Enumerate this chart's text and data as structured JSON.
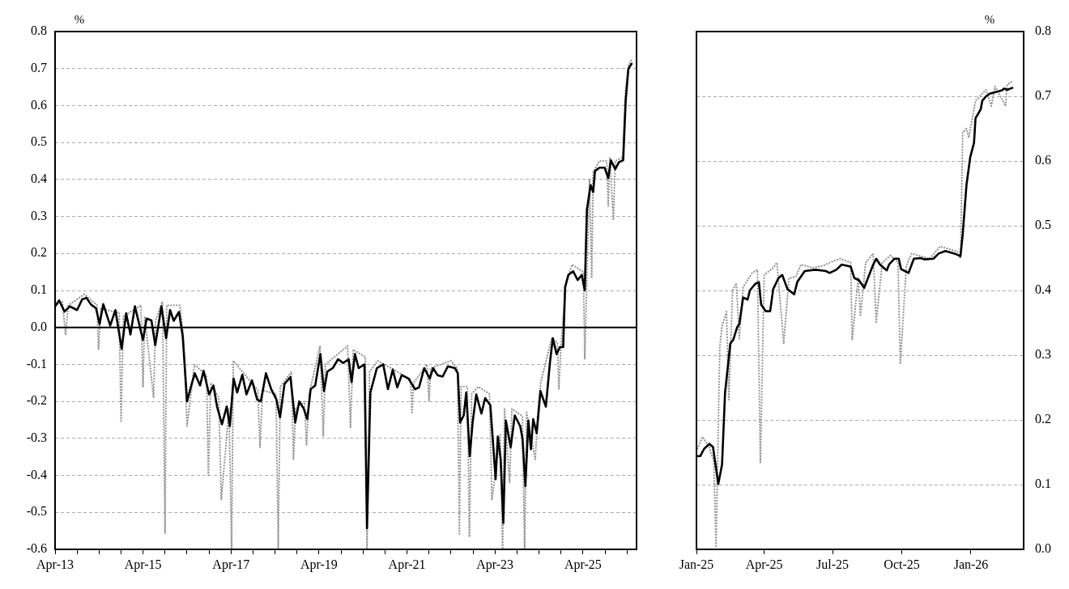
{
  "chart_data": [
    {
      "type": "line",
      "ylabel": "%",
      "grid": "y",
      "marker": "none",
      "xlim": [
        "2013-04-01",
        "2026-06-20"
      ],
      "ylim": [
        -0.6,
        0.8
      ],
      "yticks": [
        -0.6,
        -0.5,
        -0.4,
        -0.3,
        -0.2,
        -0.1,
        {
          "value": 0,
          "label": "0.0"
        },
        0.1,
        0.2,
        0.3,
        0.4,
        0.5,
        0.6,
        0.7,
        0.8
      ],
      "xticks": [
        {
          "value": "2013-04-01",
          "label": "Apr-13"
        },
        {
          "value": "2013-10-01",
          "label": null
        },
        {
          "value": "2014-04-01",
          "label": null
        },
        {
          "value": "2014-10-01",
          "label": null
        },
        {
          "value": "2015-04-01",
          "label": "Apr-15"
        },
        {
          "value": "2015-10-01",
          "label": null
        },
        {
          "value": "2016-04-01",
          "label": null
        },
        {
          "value": "2016-10-01",
          "label": null
        },
        {
          "value": "2017-04-01",
          "label": "Apr-17"
        },
        {
          "value": "2017-10-01",
          "label": null
        },
        {
          "value": "2018-04-01",
          "label": null
        },
        {
          "value": "2018-10-01",
          "label": null
        },
        {
          "value": "2019-04-01",
          "label": "Apr-19"
        },
        {
          "value": "2019-10-01",
          "label": null
        },
        {
          "value": "2020-04-01",
          "label": null
        },
        {
          "value": "2020-10-01",
          "label": null
        },
        {
          "value": "2021-04-01",
          "label": "Apr-21"
        },
        {
          "value": "2021-10-01",
          "label": null
        },
        {
          "value": "2022-04-01",
          "label": null
        },
        {
          "value": "2022-10-01",
          "label": null
        },
        {
          "value": "2023-04-01",
          "label": "Apr-23"
        },
        {
          "value": "2023-10-01",
          "label": null
        },
        {
          "value": "2024-04-01",
          "label": null
        },
        {
          "value": "2024-10-01",
          "label": null
        },
        {
          "value": "2025-04-01",
          "label": "Apr-25"
        },
        {
          "value": "2025-10-01",
          "label": null
        },
        {
          "value": "2026-04-01",
          "label": null
        }
      ],
      "ref_lines": [
        {
          "axis": "y",
          "value": 0,
          "color": "#000000",
          "line_style": "solid"
        }
      ],
      "series": [
        {
          "color": "#000000",
          "line_style": "solid",
          "x": [
            "2013-04-01",
            "2013-05-05",
            "2013-06-18",
            "2013-08-01",
            "2013-10-01",
            "2013-11-12",
            "2013-12-18",
            "2014-01-24",
            "2014-03-07",
            "2014-04-06",
            "2014-05-06",
            "2014-07-03",
            "2014-08-15",
            "2014-10-06",
            "2014-11-12",
            "2014-12-18",
            "2015-01-24",
            "2015-04-01",
            "2015-05-01",
            "2015-06-10",
            "2015-07-12",
            "2015-09-01",
            "2015-10-10",
            "2015-11-12",
            "2015-12-12",
            "2016-01-25",
            "2016-02-25",
            "2016-04-01",
            "2016-05-06",
            "2016-06-04",
            "2016-07-18",
            "2016-08-16",
            "2016-10-01",
            "2016-11-06",
            "2016-12-06",
            "2017-01-16",
            "2017-02-24",
            "2017-03-22",
            "2017-04-22",
            "2017-05-22",
            "2017-07-04",
            "2017-08-07",
            "2017-09-22",
            "2017-11-04",
            "2017-12-04",
            "2018-01-16",
            "2018-03-01",
            "2018-04-13",
            "2018-05-13",
            "2018-06-19",
            "2018-08-07",
            "2018-09-16",
            "2018-10-19",
            "2018-11-25",
            "2018-12-25",
            "2019-01-22",
            "2019-03-01",
            "2019-04-13",
            "2019-05-13",
            "2019-06-10",
            "2019-07-25",
            "2019-09-07",
            "2019-10-19",
            "2019-12-04",
            "2019-12-28",
            "2020-01-25",
            "2020-02-25",
            "2020-04-13",
            "2020-05-04",
            "2020-06-01",
            "2020-07-25",
            "2020-09-16",
            "2020-10-25",
            "2020-12-04",
            "2021-01-10",
            "2021-02-16",
            "2021-04-13",
            "2021-06-07",
            "2021-07-10",
            "2021-08-22",
            "2021-10-07",
            "2021-11-04",
            "2021-12-10",
            "2022-01-22",
            "2022-03-07",
            "2022-05-04",
            "2022-05-28",
            "2022-06-16",
            "2022-07-16",
            "2022-08-06",
            "2022-09-04",
            "2022-09-28",
            "2022-10-28",
            "2022-12-10",
            "2023-01-10",
            "2023-02-22",
            "2023-04-07",
            "2023-04-25",
            "2023-05-19",
            "2023-06-10",
            "2023-07-01",
            "2023-08-10",
            "2023-09-13",
            "2023-10-28",
            "2023-11-16",
            "2023-12-10",
            "2024-01-04",
            "2024-01-25",
            "2024-02-13",
            "2024-03-13",
            "2024-04-13",
            "2024-05-28",
            "2024-07-01",
            "2024-07-25",
            "2024-08-25",
            "2024-09-22",
            "2024-10-19",
            "2024-11-04",
            "2024-12-01",
            "2025-01-10",
            "2025-02-16",
            "2025-03-22",
            "2025-04-16",
            "2025-05-04",
            "2025-06-04",
            "2025-06-25",
            "2025-07-10",
            "2025-08-16",
            "2025-09-28",
            "2025-10-28",
            "2025-11-19",
            "2025-12-25",
            "2026-01-25",
            "2026-03-01",
            "2026-03-22",
            "2026-04-13",
            "2026-05-10"
          ],
          "values": [
            0.057,
            0.073,
            0.043,
            0.057,
            0.047,
            0.076,
            0.08,
            0.062,
            0.052,
            0.009,
            0.063,
            0.005,
            0.047,
            -0.058,
            0.038,
            -0.019,
            0.057,
            -0.034,
            0.024,
            0.019,
            -0.048,
            0.057,
            -0.029,
            0.047,
            0.018,
            0.042,
            -0.024,
            -0.2,
            -0.157,
            -0.124,
            -0.157,
            -0.117,
            -0.181,
            -0.157,
            -0.214,
            -0.262,
            -0.214,
            -0.267,
            -0.138,
            -0.176,
            -0.128,
            -0.181,
            -0.143,
            -0.195,
            -0.2,
            -0.124,
            -0.167,
            -0.195,
            -0.243,
            -0.153,
            -0.134,
            -0.257,
            -0.2,
            -0.219,
            -0.248,
            -0.167,
            -0.157,
            -0.072,
            -0.172,
            -0.119,
            -0.11,
            -0.086,
            -0.096,
            -0.086,
            -0.148,
            -0.072,
            -0.11,
            -0.1,
            -0.543,
            -0.176,
            -0.11,
            -0.1,
            -0.167,
            -0.114,
            -0.162,
            -0.129,
            -0.138,
            -0.167,
            -0.162,
            -0.11,
            -0.138,
            -0.11,
            -0.129,
            -0.133,
            -0.105,
            -0.11,
            -0.124,
            -0.257,
            -0.238,
            -0.176,
            -0.348,
            -0.257,
            -0.181,
            -0.233,
            -0.191,
            -0.21,
            -0.41,
            -0.295,
            -0.357,
            -0.529,
            -0.252,
            -0.324,
            -0.238,
            -0.267,
            -0.3,
            -0.429,
            -0.252,
            -0.329,
            -0.248,
            -0.286,
            -0.172,
            -0.214,
            -0.095,
            -0.029,
            -0.072,
            -0.053,
            -0.053,
            0.109,
            0.142,
            0.152,
            0.128,
            0.142,
            0.1,
            0.319,
            0.385,
            0.366,
            0.423,
            0.432,
            0.432,
            0.404,
            0.452,
            0.428,
            0.447,
            0.452,
            0.614,
            0.699,
            0.713
          ]
        },
        {
          "color": "#999999",
          "line_style": "dotted",
          "x": [
            "2013-04-01",
            "2013-06-01",
            "2013-06-27",
            "2013-07-20",
            "2013-12-01",
            "2014-03-15",
            "2014-03-28",
            "2014-04-15",
            "2014-09-15",
            "2014-10-01",
            "2014-10-20",
            "2015-03-15",
            "2015-04-01",
            "2015-04-15",
            "2015-06-28",
            "2015-07-15",
            "2015-09-10",
            "2015-10-01",
            "2015-10-15",
            "2016-02-01",
            "2016-03-01",
            "2016-04-01",
            "2016-06-01",
            "2016-09-10",
            "2016-09-25",
            "2016-10-15",
            "2016-12-20",
            "2017-01-10",
            "2017-03-15",
            "2017-04-06",
            "2017-04-20",
            "2017-11-10",
            "2017-11-27",
            "2017-12-20",
            "2018-04-10",
            "2018-04-28",
            "2018-05-15",
            "2018-08-15",
            "2018-09-01",
            "2018-09-20",
            "2018-12-01",
            "2018-12-19",
            "2019-01-10",
            "2019-04-10",
            "2019-05-07",
            "2019-05-25",
            "2019-11-25",
            "2019-12-19",
            "2020-01-10",
            "2020-04-20",
            "2020-05-04",
            "2020-05-25",
            "2020-08-01",
            "2021-05-01",
            "2021-05-13",
            "2021-05-25",
            "2021-09-15",
            "2021-10-01",
            "2021-10-15",
            "2022-04-01",
            "2022-05-25",
            "2022-06-10",
            "2022-06-25",
            "2022-08-15",
            "2022-09-01",
            "2022-09-20",
            "2022-11-15",
            "2023-02-15",
            "2023-03-07",
            "2023-05-15",
            "2023-06-04",
            "2023-06-20",
            "2023-08-01",
            "2023-08-20",
            "2023-11-15",
            "2023-12-04",
            "2023-12-20",
            "2024-03-01",
            "2024-03-20",
            "2024-04-15",
            "2024-07-15",
            "2024-09-01",
            "2024-09-13",
            "2024-10-01",
            "2024-11-10",
            "2025-01-01",
            "2025-04-05",
            "2025-04-16",
            "2025-05-25",
            "2025-06-13",
            "2025-06-25",
            "2025-08-15",
            "2025-10-15",
            "2025-10-28",
            "2025-11-10",
            "2025-12-10",
            "2025-12-25",
            "2026-02-25",
            "2026-03-20",
            "2026-04-15",
            "2026-05-12"
          ],
          "values": [
            0.06,
            0.07,
            -0.02,
            0.06,
            0.09,
            0.06,
            -0.06,
            0.05,
            0.04,
            -0.253,
            0.03,
            0.06,
            -0.162,
            0.03,
            -0.19,
            0.02,
            0.07,
            -0.558,
            0.06,
            0.06,
            -0.02,
            -0.267,
            -0.1,
            -0.13,
            -0.4,
            -0.15,
            -0.19,
            -0.467,
            -0.22,
            -0.6,
            -0.09,
            -0.17,
            -0.325,
            -0.17,
            -0.18,
            -0.6,
            -0.16,
            -0.12,
            -0.357,
            -0.22,
            -0.2,
            -0.319,
            -0.18,
            -0.05,
            -0.295,
            -0.1,
            -0.05,
            -0.271,
            -0.06,
            -0.08,
            -0.6,
            -0.12,
            -0.09,
            -0.14,
            -0.234,
            -0.15,
            -0.1,
            -0.2,
            -0.11,
            -0.09,
            -0.11,
            -0.558,
            -0.16,
            -0.16,
            -0.567,
            -0.18,
            -0.16,
            -0.18,
            -0.467,
            -0.29,
            -0.6,
            -0.22,
            -0.419,
            -0.22,
            -0.24,
            -0.6,
            -0.23,
            -0.357,
            -0.24,
            -0.15,
            -0.03,
            -0.04,
            -0.167,
            -0.05,
            0.12,
            0.17,
            0.15,
            -0.086,
            0.4,
            0.133,
            0.42,
            0.45,
            0.45,
            0.328,
            0.46,
            0.29,
            0.45,
            0.46,
            0.64,
            0.71,
            0.725
          ]
        }
      ]
    },
    {
      "type": "line",
      "y2label": "%",
      "grid": "y",
      "marker": "none",
      "xlim": [
        "2025-01-01",
        "2026-03-12"
      ],
      "y2lim": [
        0,
        0.8
      ],
      "y2ticks": [
        {
          "value": 0,
          "label": "0.0"
        },
        0.1,
        0.2,
        0.3,
        0.4,
        0.5,
        0.6,
        0.7,
        0.8
      ],
      "xticks": [
        {
          "value": "2025-01-01",
          "label": "Jan-25"
        },
        {
          "value": "2025-04-01",
          "label": "Apr-25"
        },
        {
          "value": "2025-07-01",
          "label": "Jul-25"
        },
        {
          "value": "2025-10-01",
          "label": "Oct-25"
        },
        {
          "value": "2026-01-01",
          "label": "Jan-26"
        }
      ],
      "series": [
        {
          "color": "#000000",
          "line_style": "solid",
          "axis": "y2",
          "x": [
            "2025-01-01",
            "2025-01-06",
            "2025-01-11",
            "2025-01-18",
            "2025-01-23",
            "2025-01-30",
            "2025-02-04",
            "2025-02-08",
            "2025-02-15",
            "2025-02-19",
            "2025-02-24",
            "2025-02-27",
            "2025-03-04",
            "2025-03-10",
            "2025-03-13",
            "2025-03-20",
            "2025-03-25",
            "2025-03-28",
            "2025-04-03",
            "2025-04-09",
            "2025-04-13",
            "2025-04-20",
            "2025-04-25",
            "2025-05-02",
            "2025-05-11",
            "2025-05-15",
            "2025-05-25",
            "2025-06-08",
            "2025-06-22",
            "2025-06-27",
            "2025-07-06",
            "2025-07-13",
            "2025-07-25",
            "2025-07-30",
            "2025-08-05",
            "2025-08-12",
            "2025-08-17",
            "2025-08-24",
            "2025-08-28",
            "2025-09-02",
            "2025-09-11",
            "2025-09-14",
            "2025-09-21",
            "2025-09-27",
            "2025-09-30",
            "2025-10-10",
            "2025-10-17",
            "2025-10-26",
            "2025-10-31",
            "2025-11-12",
            "2025-11-19",
            "2025-11-28",
            "2025-12-10",
            "2025-12-18",
            "2025-12-21",
            "2025-12-26",
            "2025-12-31",
            "2026-01-05",
            "2026-01-07",
            "2026-01-14",
            "2026-01-16",
            "2026-01-21",
            "2026-01-26",
            "2026-02-11",
            "2026-02-14",
            "2026-02-18",
            "2026-02-25"
          ],
          "values": [
            0.144,
            0.144,
            0.155,
            0.163,
            0.158,
            0.101,
            0.131,
            0.242,
            0.318,
            0.324,
            0.343,
            0.348,
            0.389,
            0.386,
            0.4,
            0.41,
            0.413,
            0.378,
            0.368,
            0.368,
            0.402,
            0.419,
            0.424,
            0.402,
            0.394,
            0.413,
            0.43,
            0.432,
            0.43,
            0.427,
            0.432,
            0.44,
            0.437,
            0.419,
            0.416,
            0.404,
            0.419,
            0.44,
            0.449,
            0.44,
            0.431,
            0.44,
            0.449,
            0.449,
            0.433,
            0.427,
            0.449,
            0.45,
            0.448,
            0.449,
            0.457,
            0.461,
            0.457,
            0.453,
            0.487,
            0.563,
            0.606,
            0.628,
            0.666,
            0.68,
            0.693,
            0.7,
            0.704,
            0.709,
            0.712,
            0.71,
            0.713
          ]
        },
        {
          "color": "#999999",
          "line_style": "dotted",
          "axis": "y2",
          "x": [
            "2025-01-01",
            "2025-01-09",
            "2025-01-18",
            "2025-01-24",
            "2025-01-27",
            "2025-02-01",
            "2025-02-04",
            "2025-02-10",
            "2025-02-13",
            "2025-02-18",
            "2025-02-23",
            "2025-02-27",
            "2025-03-04",
            "2025-03-16",
            "2025-03-23",
            "2025-03-27",
            "2025-04-01",
            "2025-04-13",
            "2025-04-18",
            "2025-04-27",
            "2025-05-04",
            "2025-05-13",
            "2025-05-20",
            "2025-06-04",
            "2025-06-18",
            "2025-06-27",
            "2025-07-11",
            "2025-07-25",
            "2025-07-27",
            "2025-08-04",
            "2025-08-07",
            "2025-08-14",
            "2025-08-24",
            "2025-08-28",
            "2025-09-05",
            "2025-09-16",
            "2025-09-26",
            "2025-09-29",
            "2025-10-07",
            "2025-10-14",
            "2025-11-07",
            "2025-11-21",
            "2025-12-14",
            "2025-12-18",
            "2025-12-21",
            "2025-12-26",
            "2025-12-29",
            "2026-01-07",
            "2026-01-21",
            "2026-01-28",
            "2026-02-02",
            "2026-02-16",
            "2026-02-18",
            "2026-02-25"
          ],
          "values": [
            0.152,
            0.174,
            0.158,
            0.136,
            0.003,
            0.313,
            0.345,
            0.367,
            0.231,
            0.4,
            0.411,
            0.326,
            0.405,
            0.427,
            0.432,
            0.133,
            0.424,
            0.435,
            0.443,
            0.318,
            0.419,
            0.421,
            0.44,
            0.435,
            0.438,
            0.443,
            0.449,
            0.443,
            0.324,
            0.419,
            0.362,
            0.443,
            0.457,
            0.351,
            0.443,
            0.454,
            0.443,
            0.286,
            0.438,
            0.457,
            0.449,
            0.468,
            0.46,
            0.449,
            0.644,
            0.65,
            0.636,
            0.693,
            0.71,
            0.685,
            0.715,
            0.685,
            0.718,
            0.723
          ]
        }
      ]
    }
  ]
}
